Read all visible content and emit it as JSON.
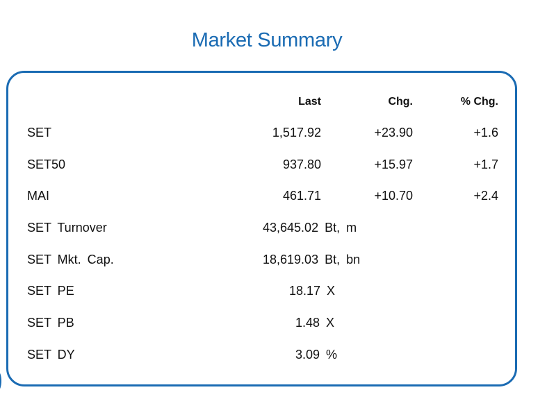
{
  "title": "Market Summary",
  "headers": {
    "last": "Last",
    "chg": "Chg.",
    "pct_chg": "% Chg."
  },
  "indices": [
    {
      "name": "SET",
      "last": "1,517.92",
      "chg": "+23.90",
      "pct_chg": "+1.6"
    },
    {
      "name": "SET50",
      "last": "937.80",
      "chg": "+15.97",
      "pct_chg": "+1.7"
    },
    {
      "name": "MAI",
      "last": "461.71",
      "chg": "+10.70",
      "pct_chg": "+2.4"
    }
  ],
  "stats": [
    {
      "name": "SET Turnover",
      "value": "43,645.02 Bt, m"
    },
    {
      "name": "SET Mkt. Cap.",
      "value": "18,619.03 Bt, bn"
    },
    {
      "name": "SET PE",
      "value": "18.17 X"
    },
    {
      "name": "SET PB",
      "value": "1.48 X"
    },
    {
      "name": "SET DY",
      "value": "3.09 %"
    }
  ],
  "colors": {
    "accent": "#1a6bb3",
    "text": "#111111"
  }
}
